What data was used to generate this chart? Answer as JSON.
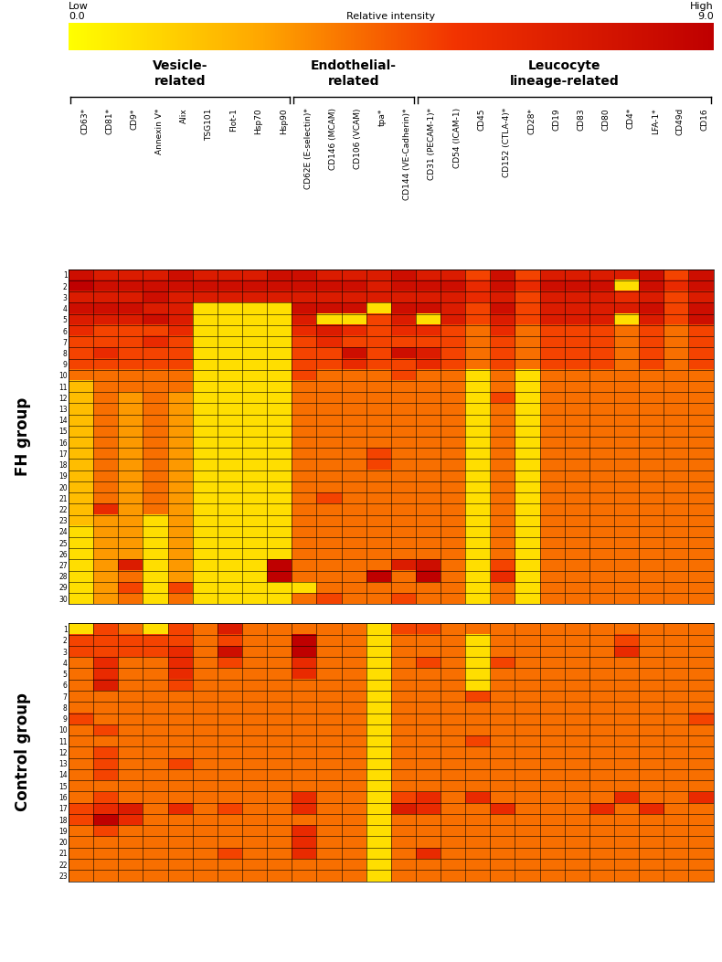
{
  "columns": [
    "CD63*",
    "CD81*",
    "CD9*",
    "Annexin V*",
    "Alix",
    "TSG101",
    "Flot-1",
    "Hsp70",
    "Hsp90",
    "CD62E (E-selectin)*",
    "CD146 (MCAM)",
    "CD106 (VCAM)",
    "tpa*",
    "CD144 (VE-Cadherin)*",
    "CD31 (PECAM-1)*",
    "CD54 (ICAM-1)",
    "CD45",
    "CD152 (CTLA-4)*",
    "CD28*",
    "CD19",
    "CD83",
    "CD80",
    "CD4*",
    "LFA-1*",
    "CD49d",
    "CD16"
  ],
  "group_labels": [
    "Vesicle-\nrelated",
    "Endothelial-\nrelated",
    "Leucocyte\nlineage-related"
  ],
  "group_col_ranges": [
    [
      0,
      8
    ],
    [
      9,
      13
    ],
    [
      14,
      25
    ]
  ],
  "vmin": 0.0,
  "vmax": 9.0,
  "fh_data": [
    [
      8,
      7,
      7,
      7,
      8,
      7,
      7,
      7,
      8,
      8,
      7,
      7,
      7,
      8,
      7,
      7,
      5,
      8,
      5,
      7,
      7,
      7,
      7,
      8,
      5,
      8
    ],
    [
      9,
      8,
      8,
      8,
      8,
      8,
      8,
      8,
      8,
      8,
      8,
      8,
      7,
      8,
      8,
      8,
      6,
      8,
      6,
      8,
      8,
      8,
      1,
      8,
      6,
      8
    ],
    [
      7,
      7,
      7,
      8,
      7,
      7,
      7,
      7,
      7,
      7,
      7,
      7,
      7,
      7,
      7,
      7,
      6,
      7,
      5,
      7,
      7,
      7,
      6,
      7,
      5,
      7
    ],
    [
      8,
      8,
      8,
      7,
      7,
      1,
      1,
      1,
      1,
      8,
      8,
      8,
      1,
      8,
      8,
      7,
      5,
      8,
      5,
      7,
      7,
      7,
      7,
      8,
      5,
      8
    ],
    [
      7,
      7,
      7,
      8,
      7,
      1,
      1,
      1,
      1,
      7,
      1,
      1,
      5,
      7,
      1,
      7,
      5,
      7,
      5,
      7,
      7,
      7,
      1,
      7,
      5,
      8
    ],
    [
      6,
      5,
      5,
      5,
      6,
      1,
      1,
      1,
      1,
      6,
      7,
      6,
      5,
      6,
      6,
      5,
      4,
      6,
      4,
      5,
      5,
      5,
      4,
      5,
      4,
      5
    ],
    [
      5,
      5,
      5,
      6,
      5,
      1,
      1,
      1,
      1,
      5,
      6,
      5,
      5,
      5,
      5,
      5,
      4,
      5,
      4,
      5,
      5,
      5,
      4,
      5,
      4,
      5
    ],
    [
      5,
      6,
      5,
      5,
      5,
      1,
      1,
      1,
      1,
      5,
      5,
      8,
      5,
      8,
      7,
      5,
      4,
      5,
      4,
      5,
      5,
      5,
      4,
      5,
      4,
      5
    ],
    [
      5,
      5,
      5,
      5,
      5,
      1,
      1,
      1,
      1,
      5,
      5,
      6,
      5,
      5,
      6,
      5,
      4,
      5,
      4,
      5,
      5,
      5,
      4,
      5,
      4,
      5
    ],
    [
      4,
      4,
      4,
      4,
      4,
      1,
      1,
      1,
      1,
      5,
      4,
      4,
      4,
      5,
      4,
      4,
      1,
      4,
      1,
      4,
      4,
      4,
      4,
      4,
      4,
      4
    ],
    [
      2,
      4,
      4,
      4,
      4,
      1,
      1,
      1,
      1,
      4,
      4,
      4,
      4,
      4,
      4,
      4,
      1,
      4,
      1,
      4,
      4,
      4,
      4,
      4,
      4,
      4
    ],
    [
      2,
      4,
      3,
      4,
      3,
      1,
      1,
      1,
      1,
      4,
      4,
      4,
      4,
      4,
      4,
      4,
      1,
      5,
      1,
      4,
      4,
      4,
      4,
      4,
      4,
      4
    ],
    [
      2,
      4,
      3,
      4,
      3,
      1,
      1,
      1,
      1,
      4,
      4,
      4,
      4,
      4,
      4,
      4,
      1,
      4,
      1,
      4,
      4,
      4,
      4,
      4,
      4,
      4
    ],
    [
      2,
      4,
      3,
      4,
      3,
      1,
      1,
      1,
      1,
      4,
      4,
      4,
      4,
      4,
      4,
      4,
      1,
      4,
      1,
      4,
      4,
      4,
      4,
      4,
      4,
      4
    ],
    [
      2,
      4,
      3,
      4,
      3,
      1,
      1,
      1,
      1,
      4,
      4,
      4,
      4,
      4,
      4,
      4,
      1,
      4,
      1,
      4,
      4,
      4,
      4,
      4,
      4,
      4
    ],
    [
      2,
      4,
      3,
      4,
      3,
      1,
      1,
      1,
      1,
      4,
      4,
      4,
      4,
      4,
      4,
      4,
      1,
      4,
      1,
      4,
      4,
      4,
      4,
      4,
      4,
      4
    ],
    [
      2,
      4,
      3,
      4,
      3,
      1,
      1,
      1,
      1,
      4,
      4,
      4,
      5,
      4,
      4,
      4,
      1,
      4,
      1,
      4,
      4,
      4,
      4,
      4,
      4,
      4
    ],
    [
      2,
      4,
      3,
      4,
      3,
      1,
      1,
      1,
      1,
      4,
      4,
      4,
      5,
      4,
      4,
      4,
      1,
      4,
      1,
      4,
      4,
      4,
      4,
      4,
      4,
      4
    ],
    [
      2,
      4,
      3,
      4,
      3,
      1,
      1,
      1,
      1,
      4,
      4,
      4,
      4,
      4,
      4,
      4,
      1,
      4,
      1,
      4,
      4,
      4,
      4,
      4,
      4,
      4
    ],
    [
      2,
      4,
      3,
      4,
      3,
      1,
      1,
      1,
      1,
      4,
      4,
      4,
      4,
      4,
      4,
      4,
      1,
      4,
      1,
      4,
      4,
      4,
      4,
      4,
      4,
      4
    ],
    [
      2,
      4,
      3,
      4,
      3,
      1,
      1,
      1,
      1,
      4,
      5,
      4,
      4,
      4,
      4,
      4,
      1,
      4,
      1,
      4,
      4,
      4,
      4,
      4,
      4,
      4
    ],
    [
      2,
      6,
      3,
      4,
      3,
      1,
      1,
      1,
      1,
      4,
      4,
      4,
      4,
      4,
      4,
      4,
      1,
      4,
      1,
      4,
      4,
      4,
      4,
      4,
      4,
      4
    ],
    [
      2,
      3,
      3,
      1,
      3,
      1,
      1,
      1,
      1,
      4,
      4,
      4,
      4,
      4,
      4,
      4,
      1,
      4,
      1,
      4,
      4,
      4,
      4,
      4,
      4,
      4
    ],
    [
      1,
      3,
      3,
      1,
      3,
      1,
      1,
      1,
      1,
      4,
      4,
      4,
      4,
      4,
      4,
      4,
      1,
      4,
      1,
      4,
      4,
      4,
      4,
      4,
      4,
      4
    ],
    [
      1,
      3,
      3,
      1,
      3,
      1,
      1,
      1,
      1,
      4,
      4,
      4,
      4,
      4,
      4,
      4,
      1,
      4,
      1,
      4,
      4,
      4,
      4,
      4,
      4,
      4
    ],
    [
      1,
      3,
      3,
      1,
      3,
      1,
      1,
      1,
      1,
      4,
      4,
      4,
      4,
      4,
      4,
      4,
      1,
      4,
      1,
      4,
      4,
      4,
      4,
      4,
      4,
      4
    ],
    [
      1,
      3,
      7,
      1,
      3,
      1,
      1,
      1,
      9,
      4,
      4,
      4,
      4,
      7,
      8,
      4,
      1,
      5,
      1,
      4,
      4,
      4,
      4,
      4,
      4,
      4
    ],
    [
      1,
      3,
      4,
      1,
      3,
      1,
      1,
      1,
      9,
      4,
      4,
      4,
      9,
      4,
      9,
      4,
      1,
      6,
      1,
      4,
      4,
      4,
      4,
      4,
      4,
      4
    ],
    [
      1,
      3,
      5,
      1,
      5,
      1,
      1,
      1,
      1,
      1,
      4,
      4,
      4,
      4,
      4,
      4,
      1,
      4,
      1,
      4,
      4,
      4,
      4,
      4,
      4,
      4
    ],
    [
      1,
      3,
      4,
      1,
      4,
      1,
      1,
      1,
      1,
      4,
      5,
      4,
      4,
      5,
      4,
      4,
      1,
      4,
      1,
      4,
      4,
      4,
      4,
      4,
      4,
      4
    ]
  ],
  "ctrl_data": [
    [
      1,
      5,
      4,
      1,
      5,
      4,
      7,
      4,
      4,
      4,
      4,
      4,
      1,
      5,
      5,
      4,
      4,
      4,
      4,
      4,
      4,
      4,
      4,
      4,
      4,
      4
    ],
    [
      5,
      5,
      5,
      5,
      5,
      4,
      5,
      4,
      4,
      9,
      4,
      4,
      1,
      4,
      4,
      4,
      1,
      4,
      4,
      4,
      4,
      4,
      5,
      4,
      4,
      4
    ],
    [
      5,
      5,
      5,
      5,
      6,
      4,
      8,
      4,
      4,
      9,
      4,
      4,
      1,
      4,
      4,
      4,
      1,
      4,
      4,
      4,
      4,
      4,
      6,
      4,
      4,
      4
    ],
    [
      4,
      6,
      4,
      4,
      6,
      4,
      5,
      4,
      4,
      6,
      4,
      4,
      1,
      4,
      5,
      4,
      1,
      5,
      4,
      4,
      4,
      4,
      4,
      4,
      4,
      4
    ],
    [
      4,
      6,
      4,
      4,
      6,
      4,
      4,
      4,
      4,
      6,
      4,
      4,
      1,
      4,
      4,
      4,
      1,
      4,
      4,
      4,
      4,
      4,
      4,
      4,
      4,
      4
    ],
    [
      4,
      7,
      4,
      4,
      5,
      4,
      4,
      4,
      4,
      4,
      4,
      4,
      1,
      4,
      4,
      4,
      1,
      4,
      4,
      4,
      4,
      4,
      4,
      4,
      4,
      4
    ],
    [
      4,
      4,
      4,
      4,
      4,
      4,
      4,
      4,
      4,
      4,
      4,
      4,
      1,
      4,
      4,
      4,
      5,
      4,
      4,
      4,
      4,
      4,
      4,
      4,
      4,
      4
    ],
    [
      4,
      4,
      4,
      4,
      4,
      4,
      4,
      4,
      4,
      4,
      4,
      4,
      1,
      4,
      4,
      4,
      4,
      4,
      4,
      4,
      4,
      4,
      4,
      4,
      4,
      4
    ],
    [
      5,
      4,
      4,
      4,
      4,
      4,
      4,
      4,
      4,
      4,
      4,
      4,
      1,
      4,
      4,
      4,
      4,
      4,
      4,
      4,
      4,
      4,
      4,
      4,
      4,
      5
    ],
    [
      4,
      5,
      4,
      4,
      4,
      4,
      4,
      4,
      4,
      4,
      4,
      4,
      1,
      4,
      4,
      4,
      4,
      4,
      4,
      4,
      4,
      4,
      4,
      4,
      4,
      4
    ],
    [
      4,
      4,
      4,
      4,
      4,
      4,
      4,
      4,
      4,
      4,
      4,
      4,
      1,
      4,
      4,
      4,
      5,
      4,
      4,
      4,
      4,
      4,
      4,
      4,
      4,
      4
    ],
    [
      4,
      5,
      4,
      4,
      4,
      4,
      4,
      4,
      4,
      4,
      4,
      4,
      1,
      4,
      4,
      4,
      4,
      4,
      4,
      4,
      4,
      4,
      4,
      4,
      4,
      4
    ],
    [
      4,
      5,
      4,
      4,
      5,
      4,
      4,
      4,
      4,
      4,
      4,
      4,
      1,
      4,
      4,
      4,
      4,
      4,
      4,
      4,
      4,
      4,
      4,
      4,
      4,
      4
    ],
    [
      4,
      5,
      4,
      4,
      4,
      4,
      4,
      4,
      4,
      4,
      4,
      4,
      1,
      4,
      4,
      4,
      4,
      4,
      4,
      4,
      4,
      4,
      4,
      4,
      4,
      4
    ],
    [
      4,
      4,
      4,
      4,
      4,
      4,
      4,
      4,
      4,
      4,
      4,
      4,
      1,
      4,
      4,
      4,
      4,
      4,
      4,
      4,
      4,
      4,
      4,
      4,
      4,
      4
    ],
    [
      4,
      5,
      4,
      4,
      4,
      4,
      4,
      4,
      4,
      6,
      4,
      4,
      1,
      5,
      6,
      4,
      6,
      4,
      4,
      4,
      4,
      4,
      6,
      4,
      4,
      6
    ],
    [
      5,
      6,
      7,
      4,
      6,
      4,
      5,
      4,
      4,
      6,
      4,
      4,
      1,
      7,
      6,
      4,
      4,
      6,
      4,
      4,
      4,
      6,
      4,
      6,
      4,
      4
    ],
    [
      5,
      9,
      6,
      4,
      4,
      4,
      4,
      4,
      4,
      4,
      4,
      4,
      1,
      4,
      4,
      4,
      4,
      4,
      4,
      4,
      4,
      4,
      4,
      4,
      4,
      4
    ],
    [
      4,
      5,
      4,
      4,
      4,
      4,
      4,
      4,
      4,
      6,
      4,
      4,
      1,
      4,
      4,
      4,
      4,
      4,
      4,
      4,
      4,
      4,
      4,
      4,
      4,
      4
    ],
    [
      4,
      4,
      4,
      4,
      4,
      4,
      4,
      4,
      4,
      6,
      4,
      4,
      1,
      4,
      4,
      4,
      4,
      4,
      4,
      4,
      4,
      4,
      4,
      4,
      4,
      4
    ],
    [
      4,
      4,
      4,
      4,
      4,
      4,
      5,
      4,
      4,
      6,
      4,
      4,
      1,
      4,
      6,
      4,
      4,
      4,
      4,
      4,
      4,
      4,
      4,
      4,
      4,
      4
    ],
    [
      4,
      4,
      4,
      4,
      4,
      4,
      4,
      4,
      4,
      4,
      4,
      4,
      1,
      4,
      4,
      4,
      4,
      4,
      4,
      4,
      4,
      4,
      4,
      4,
      4,
      4
    ],
    [
      4,
      4,
      4,
      4,
      4,
      4,
      4,
      4,
      4,
      4,
      4,
      4,
      1,
      4,
      4,
      4,
      4,
      4,
      4,
      4,
      4,
      4,
      4,
      4,
      4,
      4
    ]
  ]
}
